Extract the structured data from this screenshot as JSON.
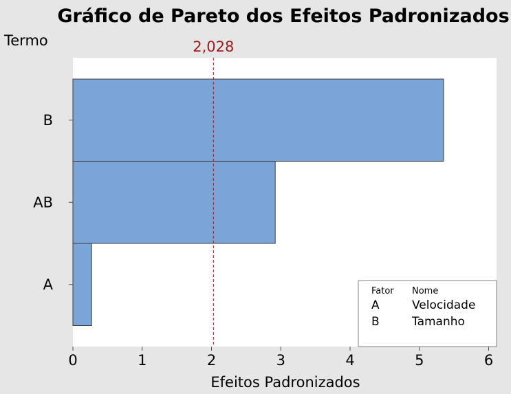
{
  "chart_data": {
    "type": "bar",
    "orientation": "horizontal",
    "title": "Gráfico de Pareto dos Efeitos Padronizados",
    "ylabel": "Termo",
    "xlabel": "Efeitos Padronizados",
    "categories": [
      "B",
      "AB",
      "A"
    ],
    "values": [
      5.35,
      2.92,
      0.27
    ],
    "xlim": [
      0,
      6
    ],
    "xticks": [
      "0",
      "1",
      "2",
      "3",
      "4",
      "5",
      "6"
    ],
    "reference_line": {
      "value": 2.028,
      "label": "2,028",
      "color": "#9b1b1b",
      "style": "dashed"
    },
    "bar_color": "#7ba5d8",
    "bar_edge_color": "#3c3c3c",
    "plot_background": "#ffffff",
    "page_background": "#e6e6e6",
    "grid": false,
    "legend": {
      "placement": "bottom-right",
      "headers": [
        "Fator",
        "Nome"
      ],
      "rows": [
        {
          "factor": "A",
          "name": "Velocidade"
        },
        {
          "factor": "B",
          "name": "Tamanho"
        }
      ]
    }
  }
}
